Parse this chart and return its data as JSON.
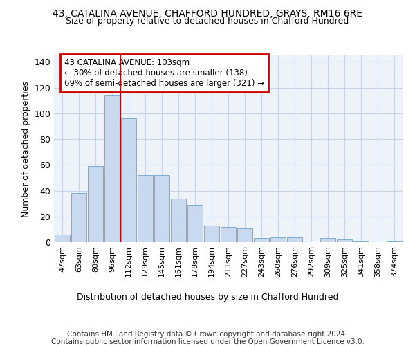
{
  "title1": "43, CATALINA AVENUE, CHAFFORD HUNDRED, GRAYS, RM16 6RE",
  "title2": "Size of property relative to detached houses in Chafford Hundred",
  "xlabel": "Distribution of detached houses by size in Chafford Hundred",
  "ylabel": "Number of detached properties",
  "footer1": "Contains HM Land Registry data © Crown copyright and database right 2024.",
  "footer2": "Contains public sector information licensed under the Open Government Licence v3.0.",
  "categories": [
    "47sqm",
    "63sqm",
    "80sqm",
    "96sqm",
    "112sqm",
    "129sqm",
    "145sqm",
    "161sqm",
    "178sqm",
    "194sqm",
    "211sqm",
    "227sqm",
    "243sqm",
    "260sqm",
    "276sqm",
    "292sqm",
    "309sqm",
    "325sqm",
    "341sqm",
    "358sqm",
    "374sqm"
  ],
  "values": [
    6,
    38,
    59,
    114,
    96,
    52,
    52,
    34,
    29,
    13,
    12,
    11,
    3,
    4,
    4,
    0,
    3,
    2,
    1,
    0,
    1
  ],
  "bar_color": "#c9d9f0",
  "bar_edgecolor": "#7badd4",
  "grid_color": "#c8d4e8",
  "bg_color": "#eef2f9",
  "annotation_text": "43 CATALINA AVENUE: 103sqm\n← 30% of detached houses are smaller (138)\n69% of semi-detached houses are larger (321) →",
  "annotation_box_edgecolor": "#cc0000",
  "vline_x": 3.5,
  "ylim": [
    0,
    145
  ],
  "yticks": [
    0,
    20,
    40,
    60,
    80,
    100,
    120,
    140
  ]
}
